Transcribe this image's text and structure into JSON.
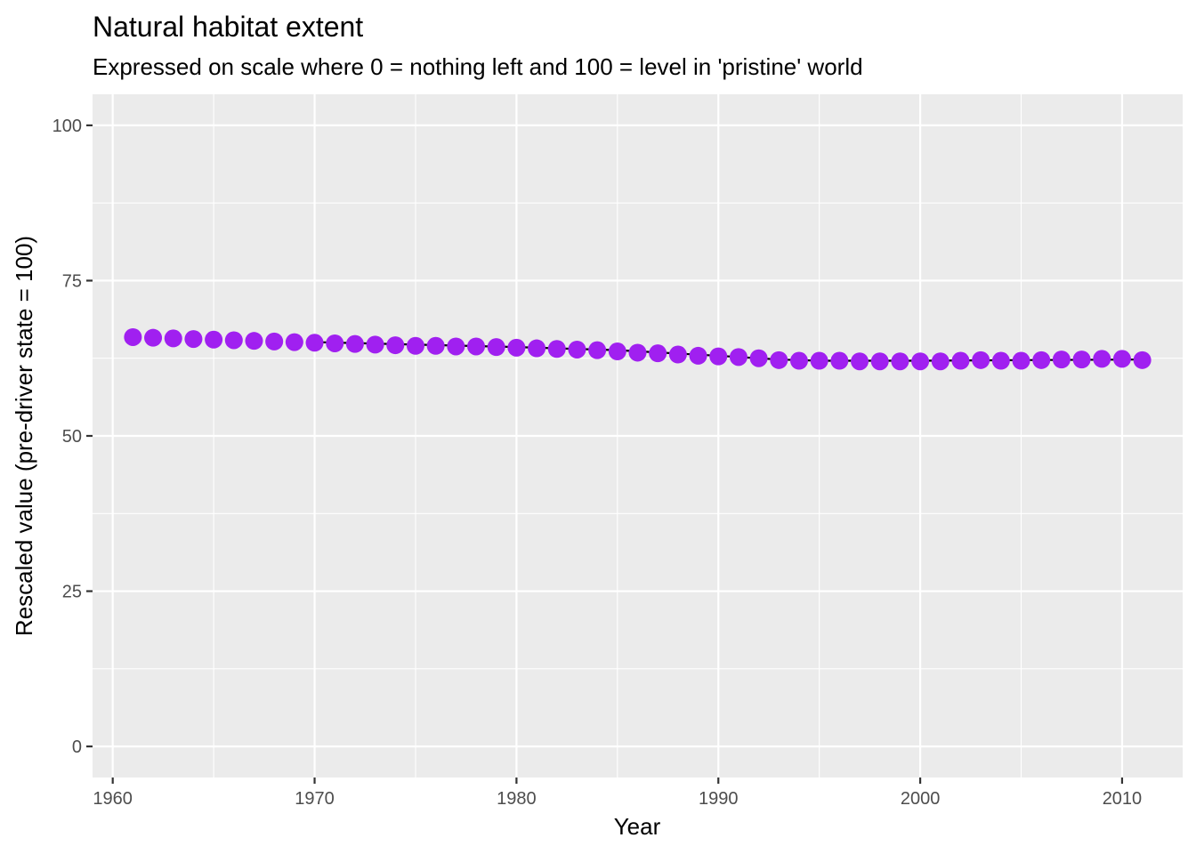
{
  "chart_data": {
    "type": "scatter",
    "title": "Natural habitat extent",
    "subtitle": "Expressed on scale where 0 = nothing left and 100 = level in 'pristine' world",
    "xlabel": "Year",
    "ylabel": "Rescaled value (pre-driver state = 100)",
    "xlim": [
      1959,
      2013
    ],
    "ylim": [
      -5,
      105
    ],
    "x_ticks": [
      1960,
      1970,
      1980,
      1990,
      2000,
      2010
    ],
    "y_ticks": [
      0,
      25,
      50,
      75,
      100
    ],
    "x_tick_labels": [
      "1960",
      "1970",
      "1980",
      "1990",
      "2000",
      "2010"
    ],
    "y_tick_labels": [
      "0",
      "25",
      "50",
      "75",
      "100"
    ],
    "grid": true,
    "legend": "none",
    "point_color": "#a020f0",
    "line_color": "#000000",
    "panel_background": "#ebebeb",
    "series": [
      {
        "kind": "points",
        "x": [
          1961,
          1962,
          1963,
          1964,
          1965,
          1966,
          1967,
          1968,
          1969,
          1970,
          1971,
          1972,
          1973,
          1974,
          1975,
          1976,
          1977,
          1978,
          1979,
          1980,
          1981,
          1982,
          1983,
          1984,
          1985,
          1986,
          1987,
          1988,
          1989,
          1990,
          1991,
          1992,
          1993,
          1994,
          1995,
          1996,
          1997,
          1998,
          1999,
          2000,
          2001,
          2002,
          2003,
          2004,
          2005,
          2006,
          2007,
          2008,
          2009,
          2010,
          2011
        ],
        "values": [
          65.9,
          65.8,
          65.7,
          65.6,
          65.5,
          65.4,
          65.3,
          65.2,
          65.1,
          65.0,
          64.9,
          64.8,
          64.7,
          64.6,
          64.5,
          64.5,
          64.4,
          64.4,
          64.3,
          64.2,
          64.1,
          64.0,
          63.9,
          63.8,
          63.6,
          63.4,
          63.3,
          63.1,
          62.9,
          62.8,
          62.7,
          62.5,
          62.2,
          62.1,
          62.1,
          62.1,
          62.0,
          62.0,
          62.0,
          62.0,
          62.0,
          62.1,
          62.2,
          62.1,
          62.1,
          62.2,
          62.3,
          62.3,
          62.4,
          62.4,
          62.2
        ]
      },
      {
        "kind": "line",
        "x": [
          1970,
          1975,
          1980,
          1985,
          1990,
          1993,
          1995,
          2000,
          2005,
          2011
        ],
        "values": [
          65.1,
          64.7,
          64.3,
          63.8,
          62.9,
          62.3,
          62.1,
          62.1,
          62.2,
          62.3
        ]
      }
    ]
  }
}
